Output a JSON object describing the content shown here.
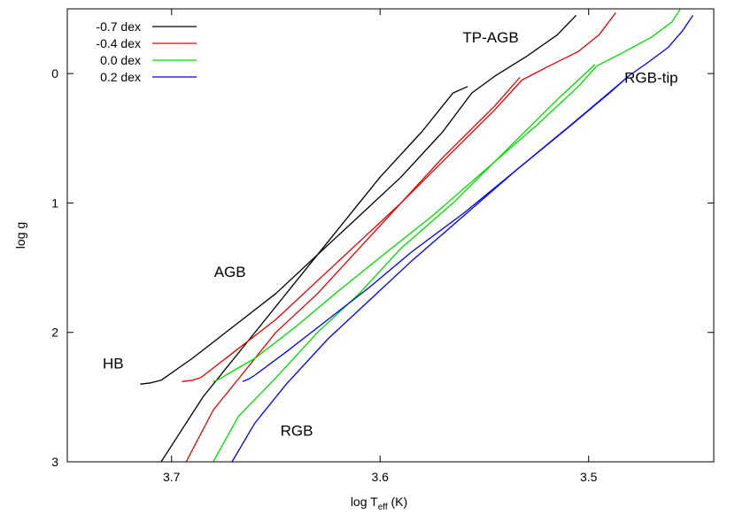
{
  "chart_data": {
    "type": "line",
    "xlabel": "log T",
    "xlabel_sub": "eff",
    "xlabel_unit": " (K)",
    "ylabel": "log g",
    "xlim": [
      3.75,
      3.44
    ],
    "ylim": [
      3.0,
      -0.5
    ],
    "x_reversed": true,
    "y_reversed": true,
    "xticks": [
      3.7,
      3.6,
      3.5
    ],
    "xtick_labels": [
      "3.7",
      "3.6",
      "3.5"
    ],
    "yticks": [
      0,
      1,
      2,
      3
    ],
    "ytick_labels": [
      "0",
      "1",
      "2",
      "3"
    ],
    "grid": false,
    "legend_position": "top-left",
    "annotations": [
      {
        "text": "TP-AGB",
        "x": 3.547,
        "y": -0.24
      },
      {
        "text": "RGB-tip",
        "x": 3.47,
        "y": 0.07
      },
      {
        "text": "AGB",
        "x": 3.672,
        "y": 1.57
      },
      {
        "text": "HB",
        "x": 3.728,
        "y": 2.28
      },
      {
        "text": "RGB",
        "x": 3.64,
        "y": 2.8
      }
    ],
    "series": [
      {
        "name": "-0.7 dex",
        "color": "#000000",
        "rgb": [
          [
            3.705,
            3.0
          ],
          [
            3.685,
            2.5
          ],
          [
            3.67,
            2.2
          ],
          [
            3.655,
            1.9
          ],
          [
            3.64,
            1.6
          ],
          [
            3.62,
            1.2
          ],
          [
            3.6,
            0.8
          ],
          [
            3.58,
            0.45
          ],
          [
            3.565,
            0.15
          ],
          [
            3.558,
            0.1
          ]
        ],
        "hb": [
          [
            3.715,
            2.4
          ],
          [
            3.71,
            2.39
          ],
          [
            3.705,
            2.37
          ]
        ],
        "agb": [
          [
            3.705,
            2.37
          ],
          [
            3.69,
            2.2
          ],
          [
            3.67,
            1.95
          ],
          [
            3.65,
            1.7
          ],
          [
            3.63,
            1.4
          ],
          [
            3.61,
            1.1
          ],
          [
            3.59,
            0.8
          ],
          [
            3.57,
            0.45
          ],
          [
            3.556,
            0.15
          ]
        ],
        "tpagb": [
          [
            3.556,
            0.15
          ],
          [
            3.545,
            0.02
          ],
          [
            3.53,
            -0.13
          ],
          [
            3.515,
            -0.3
          ],
          [
            3.506,
            -0.45
          ]
        ]
      },
      {
        "name": "-0.4 dex",
        "color": "#e60000",
        "rgb": [
          [
            3.693,
            3.0
          ],
          [
            3.68,
            2.6
          ],
          [
            3.665,
            2.3
          ],
          [
            3.65,
            2.0
          ],
          [
            3.63,
            1.7
          ],
          [
            3.61,
            1.35
          ],
          [
            3.59,
            1.0
          ],
          [
            3.57,
            0.65
          ],
          [
            3.545,
            0.25
          ],
          [
            3.533,
            0.03
          ]
        ],
        "hb": [
          [
            3.695,
            2.38
          ],
          [
            3.69,
            2.37
          ],
          [
            3.686,
            2.35
          ]
        ],
        "agb": [
          [
            3.686,
            2.35
          ],
          [
            3.67,
            2.15
          ],
          [
            3.65,
            1.9
          ],
          [
            3.63,
            1.6
          ],
          [
            3.61,
            1.3
          ],
          [
            3.59,
            1.0
          ],
          [
            3.565,
            0.6
          ],
          [
            3.545,
            0.28
          ],
          [
            3.532,
            0.05
          ]
        ],
        "tpagb": [
          [
            3.532,
            0.05
          ],
          [
            3.52,
            -0.05
          ],
          [
            3.505,
            -0.17
          ],
          [
            3.495,
            -0.3
          ],
          [
            3.487,
            -0.47
          ]
        ]
      },
      {
        "name": "0.0 dex",
        "color": "#00dd00",
        "rgb": [
          [
            3.68,
            3.0
          ],
          [
            3.668,
            2.65
          ],
          [
            3.65,
            2.35
          ],
          [
            3.63,
            2.0
          ],
          [
            3.61,
            1.7
          ],
          [
            3.59,
            1.35
          ],
          [
            3.565,
            1.0
          ],
          [
            3.54,
            0.6
          ],
          [
            3.515,
            0.2
          ],
          [
            3.497,
            -0.07
          ]
        ],
        "hb": [
          [
            3.68,
            2.38
          ],
          [
            3.677,
            2.36
          ],
          [
            3.674,
            2.33
          ]
        ],
        "agb": [
          [
            3.674,
            2.33
          ],
          [
            3.66,
            2.2
          ],
          [
            3.64,
            1.95
          ],
          [
            3.62,
            1.68
          ],
          [
            3.6,
            1.42
          ],
          [
            3.575,
            1.1
          ],
          [
            3.55,
            0.75
          ],
          [
            3.525,
            0.4
          ],
          [
            3.505,
            0.1
          ],
          [
            3.496,
            -0.06
          ]
        ],
        "tpagb": [
          [
            3.496,
            -0.06
          ],
          [
            3.485,
            -0.15
          ],
          [
            3.47,
            -0.28
          ],
          [
            3.46,
            -0.4
          ],
          [
            3.454,
            -0.55
          ]
        ]
      },
      {
        "name": "0.2 dex",
        "color": "#0000ee",
        "rgb": [
          [
            3.671,
            3.0
          ],
          [
            3.66,
            2.7
          ],
          [
            3.645,
            2.4
          ],
          [
            3.625,
            2.05
          ],
          [
            3.605,
            1.75
          ],
          [
            3.585,
            1.45
          ],
          [
            3.56,
            1.1
          ],
          [
            3.535,
            0.75
          ],
          [
            3.505,
            0.35
          ],
          [
            3.483,
            0.05
          ]
        ],
        "hb": [
          [
            3.666,
            2.38
          ],
          [
            3.663,
            2.36
          ],
          [
            3.66,
            2.33
          ]
        ],
        "agb": [
          [
            3.66,
            2.33
          ],
          [
            3.645,
            2.15
          ],
          [
            3.625,
            1.9
          ],
          [
            3.605,
            1.65
          ],
          [
            3.585,
            1.38
          ],
          [
            3.56,
            1.08
          ],
          [
            3.535,
            0.75
          ],
          [
            3.51,
            0.42
          ],
          [
            3.49,
            0.15
          ],
          [
            3.481,
            0.02
          ]
        ],
        "tpagb": [
          [
            3.481,
            0.02
          ],
          [
            3.472,
            -0.08
          ],
          [
            3.462,
            -0.2
          ],
          [
            3.455,
            -0.33
          ],
          [
            3.45,
            -0.45
          ]
        ]
      }
    ]
  }
}
